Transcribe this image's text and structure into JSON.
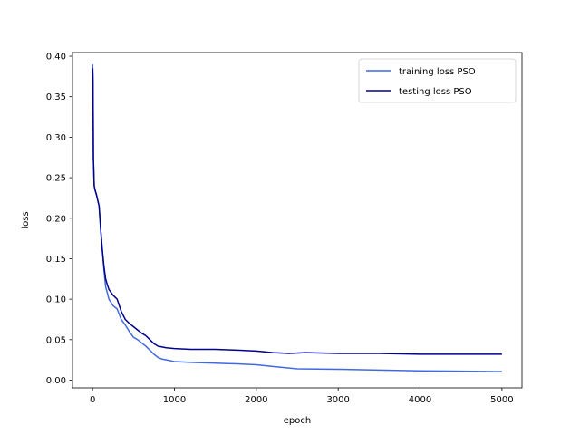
{
  "chart_data": {
    "type": "line",
    "title": "",
    "xlabel": "epoch",
    "ylabel": "loss",
    "xlim": [
      -245,
      5245
    ],
    "ylim": [
      -0.0095,
      0.4045
    ],
    "xticks": [
      0,
      1000,
      2000,
      3000,
      4000,
      5000
    ],
    "xtick_labels": [
      "0",
      "1000",
      "2000",
      "3000",
      "4000",
      "5000"
    ],
    "yticks": [
      0.0,
      0.05,
      0.1,
      0.15,
      0.2,
      0.25,
      0.3,
      0.35,
      0.4
    ],
    "ytick_labels": [
      "0.00",
      "0.05",
      "0.10",
      "0.15",
      "0.20",
      "0.25",
      "0.30",
      "0.35",
      "0.40"
    ],
    "grid": false,
    "legend": {
      "position": "top-right"
    },
    "series": [
      {
        "name": "training loss PSO",
        "color": "#4169e1",
        "x": [
          0,
          5,
          10,
          20,
          30,
          50,
          80,
          100,
          120,
          140,
          160,
          180,
          200,
          250,
          300,
          350,
          400,
          450,
          500,
          550,
          600,
          650,
          700,
          750,
          800,
          850,
          900,
          1000,
          1200,
          1500,
          1800,
          2000,
          2200,
          2400,
          2500,
          3000,
          3500,
          4000,
          4500,
          5000
        ],
        "y": [
          0.39,
          0.38,
          0.275,
          0.24,
          0.235,
          0.228,
          0.215,
          0.185,
          0.16,
          0.135,
          0.115,
          0.108,
          0.1,
          0.092,
          0.088,
          0.075,
          0.068,
          0.06,
          0.053,
          0.05,
          0.046,
          0.042,
          0.037,
          0.032,
          0.028,
          0.026,
          0.025,
          0.023,
          0.022,
          0.021,
          0.02,
          0.019,
          0.017,
          0.015,
          0.014,
          0.0135,
          0.0125,
          0.0115,
          0.011,
          0.0105
        ]
      },
      {
        "name": "testing loss PSO",
        "color": "#00008b",
        "x": [
          0,
          5,
          10,
          20,
          30,
          50,
          80,
          100,
          120,
          140,
          160,
          180,
          200,
          250,
          300,
          350,
          400,
          450,
          500,
          550,
          600,
          650,
          700,
          750,
          800,
          900,
          1000,
          1200,
          1500,
          1800,
          2000,
          2200,
          2400,
          2600,
          3000,
          3500,
          4000,
          4500,
          5000
        ],
        "y": [
          0.385,
          0.37,
          0.275,
          0.24,
          0.235,
          0.228,
          0.215,
          0.185,
          0.16,
          0.14,
          0.125,
          0.118,
          0.112,
          0.105,
          0.1,
          0.085,
          0.075,
          0.07,
          0.066,
          0.062,
          0.058,
          0.055,
          0.05,
          0.045,
          0.042,
          0.04,
          0.039,
          0.038,
          0.038,
          0.037,
          0.036,
          0.034,
          0.033,
          0.034,
          0.033,
          0.033,
          0.032,
          0.032,
          0.032
        ]
      }
    ]
  }
}
